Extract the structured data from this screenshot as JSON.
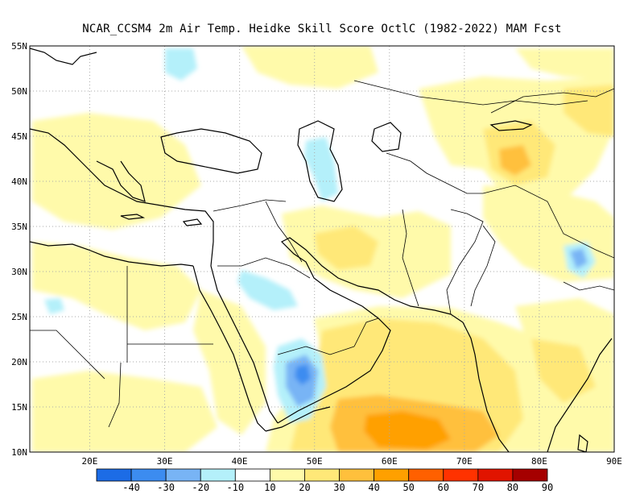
{
  "title": "NCAR_CCSM4  2m Air Temp. Heidke Skill Score OctlC (1982-2022) MAM Fcst",
  "map": {
    "lon_range": [
      12,
      90
    ],
    "lat_range": [
      10,
      55
    ],
    "lon_ticks": [
      "20E",
      "30E",
      "40E",
      "50E",
      "60E",
      "70E",
      "80E",
      "90E"
    ],
    "lat_ticks": [
      "10N",
      "15N",
      "20N",
      "25N",
      "30N",
      "35N",
      "40N",
      "45N",
      "50N",
      "55N"
    ],
    "gridlines": "dotted"
  },
  "colorbar": {
    "colors": [
      "#1c6ce6",
      "#3c8cf0",
      "#78b4f5",
      "#b4f0fa",
      "#ffffff",
      "#fffaaa",
      "#ffe878",
      "#ffc03c",
      "#ffa000",
      "#ff6000",
      "#ff3200",
      "#e11400",
      "#a50000"
    ],
    "labels": [
      "-40",
      "-30",
      "-20",
      "-10",
      "10",
      "20",
      "30",
      "40",
      "50",
      "60",
      "70",
      "80",
      "90"
    ]
  },
  "chart_data": {
    "type": "heatmap",
    "title": "NCAR_CCSM4  2m Air Temp. Heidke Skill Score OctlC (1982-2022) MAM Fcst",
    "xlabel": "",
    "ylabel": "",
    "xlim": [
      12,
      90
    ],
    "ylim": [
      10,
      55
    ],
    "color_levels": [
      -40,
      -30,
      -20,
      -10,
      10,
      20,
      30,
      40,
      50,
      60,
      70,
      80,
      90
    ],
    "regions": [
      {
        "lon": [
          50,
          68
        ],
        "lat": [
          11,
          16
        ],
        "approx_value": 40
      },
      {
        "lon": [
          44,
          78
        ],
        "lat": [
          10,
          25
        ],
        "approx_value": 25
      },
      {
        "lon": [
          45,
          55
        ],
        "lat": [
          31,
          40
        ],
        "approx_value": 15
      },
      {
        "lon": [
          72,
          86
        ],
        "lat": [
          33,
          43
        ],
        "approx_value": 15
      },
      {
        "lon": [
          75,
          90
        ],
        "lat": [
          40,
          50
        ],
        "approx_value": 15
      },
      {
        "lon": [
          47,
          50
        ],
        "lat": [
          15,
          20
        ],
        "approx_value": -30
      },
      {
        "lon": [
          46,
          49
        ],
        "lat": [
          37,
          42
        ],
        "approx_value": -12
      },
      {
        "lon": [
          84,
          87
        ],
        "lat": [
          30,
          32
        ],
        "approx_value": -20
      },
      {
        "lon": [
          29,
          32
        ],
        "lat": [
          51,
          55
        ],
        "approx_value": -12
      }
    ]
  }
}
